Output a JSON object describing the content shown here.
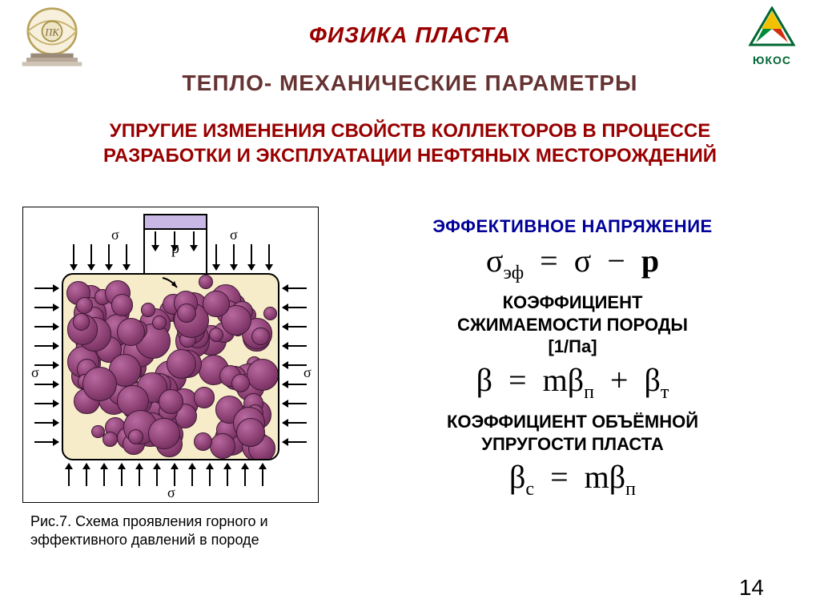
{
  "logos": {
    "right_label": "ЮКОС",
    "right_colors": {
      "top": "#f2c200",
      "left": "#008a3a",
      "right": "#d42e12"
    }
  },
  "titles": {
    "main": "ФИЗИКА ПЛАСТА",
    "sub": "ТЕПЛО- МЕХАНИЧЕСКИЕ ПАРАМЕТРЫ",
    "section": "УПРУГИЕ ИЗМЕНЕНИЯ СВОЙСТВ КОЛЛЕКТОРОВ В ПРОЦЕССЕ РАЗРАБОТКИ И ЭКСПЛУАТАЦИИ НЕФТЯНЫХ  МЕСТОРОЖДЕНИЙ"
  },
  "figure": {
    "caption": "Рис.7. Схема проявления горного и эффективного давлений в породе",
    "labels": {
      "sigma": "σ",
      "p": "p"
    },
    "grain_color_light": "#b86aa0",
    "grain_color_dark": "#5e2450",
    "pore_bg": "#f7ecc9",
    "piston_fill": "#c9b8e6"
  },
  "right": {
    "h1": "ЭФФЕКТИВНОЕ НАПРЯЖЕНИЕ",
    "h2_line1": "КОЭФФИЦИЕНТ",
    "h2_line2": "СЖИМАЕМОСТИ ПОРОДЫ",
    "h2_line3": "[1/Па]",
    "h3_line1": "КОЭФФИЦИЕНТ ОБЪЁМНОЙ",
    "h3_line2": "УПРУГОСТИ ПЛАСТА"
  },
  "formulas": {
    "f1": {
      "lhs_sym": "σ",
      "lhs_sub": "эф",
      "rhs1": "σ",
      "minus": "−",
      "rhs2": "p",
      "eq": "="
    },
    "f2": {
      "lhs": "β",
      "eq": "=",
      "t1a": "m",
      "t1b": "β",
      "t1sub": "п",
      "plus": "+",
      "t2": "β",
      "t2sub": "т"
    },
    "f3": {
      "lhs": "β",
      "lhs_sub": "с",
      "eq": "=",
      "r1": "m",
      "r2": "β",
      "r2sub": "п"
    }
  },
  "page_number": "14",
  "colors": {
    "title_red": "#990000",
    "title_brown": "#663333",
    "heading_blue": "#000099"
  }
}
